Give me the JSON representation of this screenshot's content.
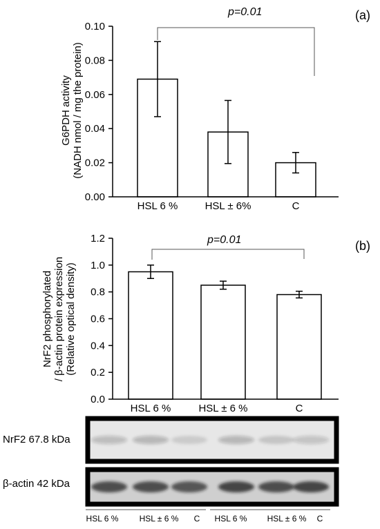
{
  "chart_data": [
    {
      "type": "bar",
      "panel_label": "(a)",
      "ylabel_lines": [
        "G6PDH activity",
        "(NADH nmol / mg the protein)"
      ],
      "categories": [
        "HSL 6 %",
        "HSL ± 6%",
        "C"
      ],
      "values": [
        0.069,
        0.038,
        0.02
      ],
      "errors": [
        0.022,
        0.0185,
        0.006
      ],
      "ylim": [
        0,
        0.1
      ],
      "yticks": [
        "0.00",
        "0.02",
        "0.04",
        "0.06",
        "0.08",
        "0.10"
      ],
      "significance": {
        "label": "p=0.01",
        "from": 0,
        "to": 2
      }
    },
    {
      "type": "bar",
      "panel_label": "(b)",
      "ylabel_lines": [
        "NrF2 phosphorylated",
        "/ β-actin protein expression",
        "(Relative optical density)"
      ],
      "categories": [
        "HSL 6 %",
        "HSL ± 6 %",
        "C"
      ],
      "values": [
        0.95,
        0.85,
        0.78
      ],
      "errors": [
        0.05,
        0.03,
        0.025
      ],
      "ylim": [
        0,
        1.2
      ],
      "yticks": [
        "0.0",
        "0.2",
        "0.4",
        "0.6",
        "0.8",
        "1.0",
        "1.2"
      ],
      "significance": {
        "label": "p=0.01",
        "from": 0,
        "to": 2
      }
    }
  ],
  "blots": {
    "nrf2_label": "NrF2 67.8 kDa",
    "actin_label": "β-actin 42 kDa",
    "nrf2_intensity": [
      0.35,
      0.4,
      0.2,
      0.4,
      0.25,
      0.3
    ],
    "actin_intensity": [
      0.85,
      0.85,
      0.8,
      0.9,
      0.85,
      0.9
    ]
  },
  "lane_labels": [
    "HSL 6 %",
    "HSL ± 6 %",
    "C",
    "HSL 6 %",
    "HSL ± 6 %",
    "C"
  ]
}
